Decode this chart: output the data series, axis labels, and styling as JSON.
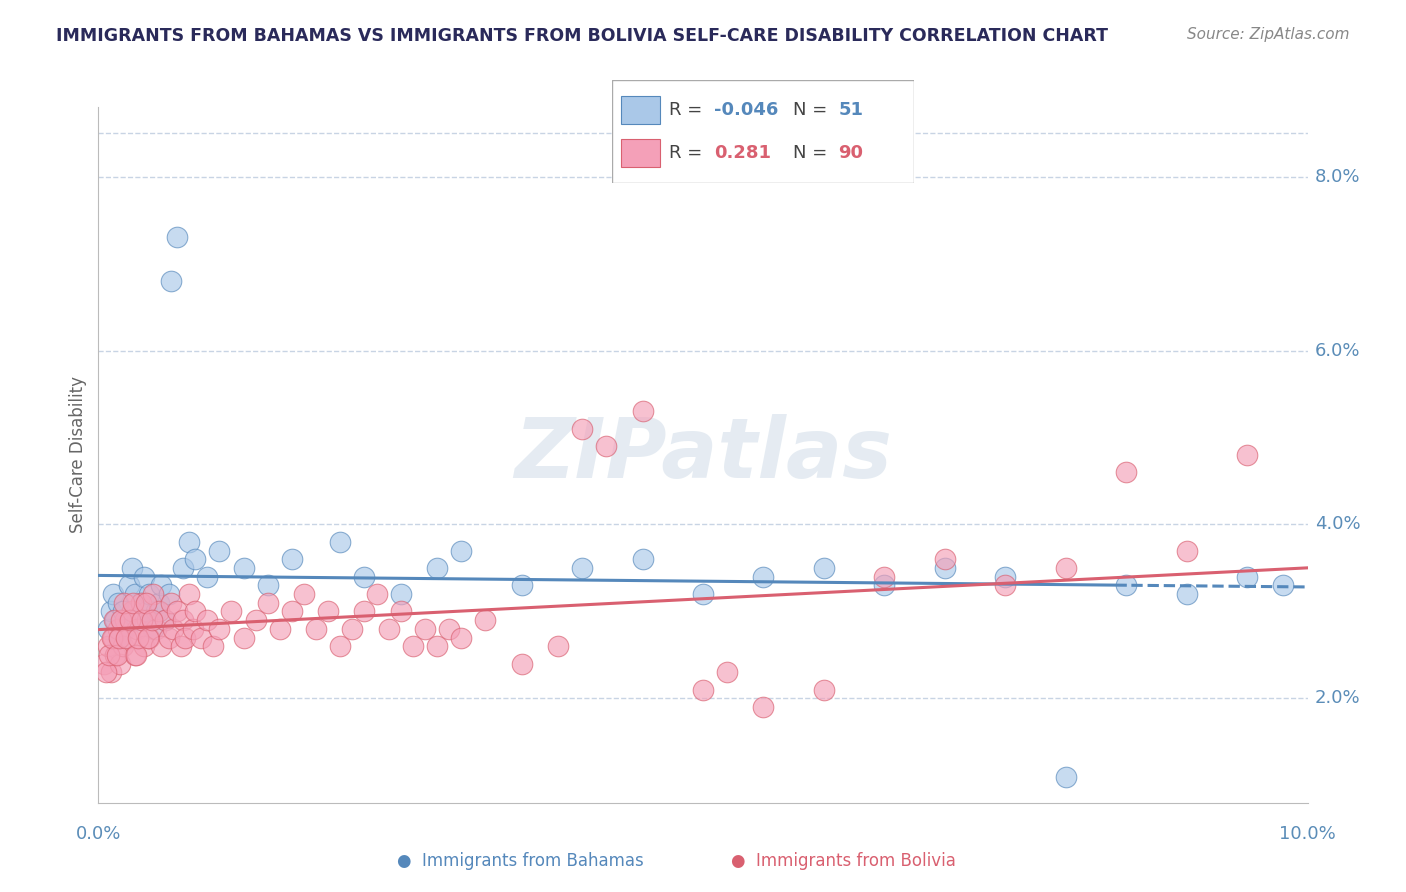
{
  "title": "IMMIGRANTS FROM BAHAMAS VS IMMIGRANTS FROM BOLIVIA SELF-CARE DISABILITY CORRELATION CHART",
  "source": "Source: ZipAtlas.com",
  "ylabel": "Self-Care Disability",
  "x_min": 0.0,
  "x_max": 10.0,
  "y_min": 0.8,
  "y_max": 8.8,
  "y_ticks": [
    2.0,
    4.0,
    6.0,
    8.0
  ],
  "bahamas_R": -0.046,
  "bahamas_N": 51,
  "bolivia_R": 0.281,
  "bolivia_N": 90,
  "color_blue": "#aac8e8",
  "color_pink": "#f4a0b8",
  "color_blue_line": "#5588bb",
  "color_pink_line": "#d96070",
  "color_axis_label": "#5b8db8",
  "color_grid": "#c8d4e4",
  "watermark_color": "#d0dce8",
  "bahamas_x": [
    0.08,
    0.1,
    0.12,
    0.14,
    0.16,
    0.18,
    0.2,
    0.22,
    0.25,
    0.28,
    0.3,
    0.32,
    0.35,
    0.38,
    0.4,
    0.42,
    0.45,
    0.48,
    0.5,
    0.52,
    0.55,
    0.58,
    0.6,
    0.65,
    0.7,
    0.75,
    0.8,
    0.9,
    1.0,
    1.2,
    1.4,
    1.6,
    2.0,
    2.2,
    2.5,
    2.8,
    3.0,
    3.5,
    4.0,
    4.5,
    5.0,
    5.5,
    6.0,
    6.5,
    7.0,
    7.5,
    8.0,
    8.5,
    9.0,
    9.5,
    9.8
  ],
  "bahamas_y": [
    2.8,
    3.0,
    3.2,
    2.9,
    3.1,
    2.7,
    3.0,
    2.8,
    3.3,
    3.5,
    3.2,
    2.9,
    3.1,
    3.4,
    3.0,
    3.2,
    2.8,
    3.0,
    3.1,
    3.3,
    2.9,
    3.2,
    6.8,
    7.3,
    3.5,
    3.8,
    3.6,
    3.4,
    3.7,
    3.5,
    3.3,
    3.6,
    3.8,
    3.4,
    3.2,
    3.5,
    3.7,
    3.3,
    3.5,
    3.6,
    3.2,
    3.4,
    3.5,
    3.3,
    3.5,
    3.4,
    1.1,
    3.3,
    3.2,
    3.4,
    3.3
  ],
  "bolivia_x": [
    0.05,
    0.08,
    0.1,
    0.12,
    0.14,
    0.16,
    0.18,
    0.2,
    0.22,
    0.25,
    0.28,
    0.3,
    0.32,
    0.35,
    0.38,
    0.4,
    0.42,
    0.45,
    0.48,
    0.5,
    0.52,
    0.55,
    0.58,
    0.6,
    0.62,
    0.65,
    0.68,
    0.7,
    0.72,
    0.75,
    0.78,
    0.8,
    0.85,
    0.9,
    0.95,
    1.0,
    1.1,
    1.2,
    1.3,
    1.4,
    1.5,
    1.6,
    1.7,
    1.8,
    1.9,
    2.0,
    2.1,
    2.2,
    2.3,
    2.4,
    2.5,
    2.6,
    2.7,
    2.8,
    2.9,
    3.0,
    3.2,
    3.5,
    3.8,
    4.0,
    4.2,
    4.5,
    5.0,
    5.2,
    5.5,
    6.0,
    6.5,
    7.0,
    7.5,
    8.0,
    8.5,
    9.0,
    9.5,
    0.06,
    0.09,
    0.11,
    0.13,
    0.15,
    0.17,
    0.19,
    0.21,
    0.23,
    0.26,
    0.29,
    0.31,
    0.33,
    0.36,
    0.39,
    0.41,
    0.44
  ],
  "bolivia_y": [
    2.4,
    2.6,
    2.3,
    2.7,
    2.5,
    2.8,
    2.4,
    2.6,
    2.9,
    2.7,
    3.0,
    2.5,
    2.8,
    3.1,
    2.6,
    2.9,
    2.7,
    3.2,
    2.8,
    3.0,
    2.6,
    2.9,
    2.7,
    3.1,
    2.8,
    3.0,
    2.6,
    2.9,
    2.7,
    3.2,
    2.8,
    3.0,
    2.7,
    2.9,
    2.6,
    2.8,
    3.0,
    2.7,
    2.9,
    3.1,
    2.8,
    3.0,
    3.2,
    2.8,
    3.0,
    2.6,
    2.8,
    3.0,
    3.2,
    2.8,
    3.0,
    2.6,
    2.8,
    2.6,
    2.8,
    2.7,
    2.9,
    2.4,
    2.6,
    5.1,
    4.9,
    5.3,
    2.1,
    2.3,
    1.9,
    2.1,
    3.4,
    3.6,
    3.3,
    3.5,
    4.6,
    3.7,
    4.8,
    2.3,
    2.5,
    2.7,
    2.9,
    2.5,
    2.7,
    2.9,
    3.1,
    2.7,
    2.9,
    3.1,
    2.5,
    2.7,
    2.9,
    3.1,
    2.7,
    2.9
  ]
}
